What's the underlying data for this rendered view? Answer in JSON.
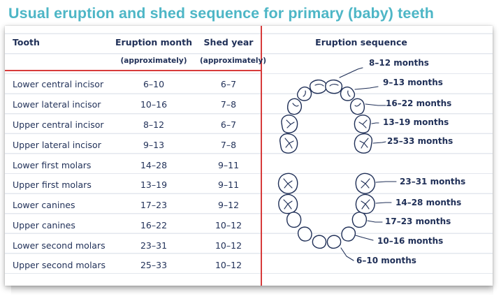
{
  "title": "Usual eruption and shed sequence for primary (baby) teeth",
  "table": {
    "headers": {
      "tooth": "Tooth",
      "eruption": "Eruption month",
      "shed": "Shed year",
      "eruption_note": "(approximately)",
      "shed_note": "(approximately)"
    },
    "rows": [
      {
        "tooth": "Lower central incisor",
        "eruption": "6–10",
        "shed": "6–7"
      },
      {
        "tooth": "Lower lateral incisor",
        "eruption": "10–16",
        "shed": "7–8"
      },
      {
        "tooth": "Upper central incisor",
        "eruption": "8–12",
        "shed": "6–7"
      },
      {
        "tooth": "Upper lateral incisor",
        "eruption": "9–13",
        "shed": "7–8"
      },
      {
        "tooth": "Lower first molars",
        "eruption": "14–28",
        "shed": "9–11"
      },
      {
        "tooth": "Upper first molars",
        "eruption": "13–19",
        "shed": "9–11"
      },
      {
        "tooth": "Lower canines",
        "eruption": "17–23",
        "shed": "9–12"
      },
      {
        "tooth": "Upper canines",
        "eruption": "16–22",
        "shed": "10–12"
      },
      {
        "tooth": "Lower second molars",
        "eruption": "23–31",
        "shed": "10–12"
      },
      {
        "tooth": "Upper second molars",
        "eruption": "25–33",
        "shed": "10–12"
      }
    ]
  },
  "diagram": {
    "heading": "Eruption sequence",
    "upper_labels": [
      "8–12 months",
      "9–13 months",
      "16–22 months",
      "13–19 months",
      "25–33 months"
    ],
    "lower_labels": [
      "23–31 months",
      "14–28 months",
      "17–23 months",
      "10–16 months",
      "6–10 months"
    ]
  },
  "colors": {
    "title": "#4db6c6",
    "text": "#1f2f57",
    "rule": "#d73b3b",
    "notebook_line": "#e3e7ee"
  }
}
